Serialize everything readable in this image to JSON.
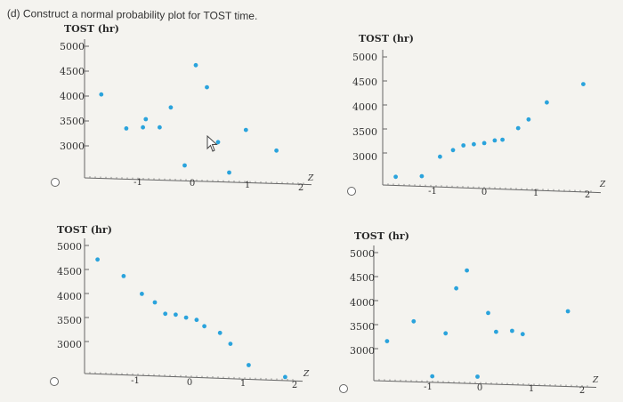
{
  "question": "(d) Construct a normal probability plot for TOST time.",
  "options": [
    {
      "id": "A",
      "ylabel": "TOST (hr)",
      "yticks": [
        "5000",
        "4500",
        "4000",
        "3500",
        "3000"
      ],
      "xticks": [
        "-1",
        "0",
        "1",
        "2"
      ],
      "zlabel": "Z"
    },
    {
      "id": "B",
      "ylabel": "TOST (hr)",
      "yticks": [
        "5000",
        "4500",
        "4000",
        "3500",
        "3000"
      ],
      "xticks": [
        "-1",
        "0",
        "1",
        "2"
      ],
      "zlabel": "Z"
    },
    {
      "id": "C",
      "ylabel": "TOST (hr)",
      "yticks": [
        "5000",
        "4500",
        "4000",
        "3500",
        "3000"
      ],
      "xticks": [
        "-1",
        "0",
        "1",
        "2"
      ],
      "zlabel": "Z"
    },
    {
      "id": "D",
      "ylabel": "TOST (hr)",
      "yticks": [
        "5000",
        "4500",
        "4000",
        "3500",
        "3000"
      ],
      "xticks": [
        "-1",
        "0",
        "1",
        "2"
      ],
      "zlabel": "Z"
    }
  ],
  "chart_data": [
    {
      "type": "scatter",
      "ylabel": "TOST (hr)",
      "xlabel": "Z",
      "xlim": [
        -1.8,
        2.2
      ],
      "ylim": [
        2700,
        5100
      ],
      "points": [
        [
          -1.5,
          4180
        ],
        [
          -1.05,
          3540
        ],
        [
          -0.75,
          3570
        ],
        [
          -0.7,
          3730
        ],
        [
          -0.45,
          3580
        ],
        [
          -0.25,
          3970
        ],
        [
          0.0,
          2860
        ],
        [
          0.2,
          4800
        ],
        [
          0.4,
          4380
        ],
        [
          0.6,
          3330
        ],
        [
          0.8,
          2750
        ],
        [
          1.1,
          3580
        ],
        [
          1.65,
          3200
        ]
      ],
      "color": "#2aa3dc"
    },
    {
      "type": "scatter",
      "ylabel": "TOST (hr)",
      "xlabel": "Z",
      "xlim": [
        -1.9,
        2.2
      ],
      "ylim": [
        2700,
        5100
      ],
      "points": [
        [
          -1.65,
          2730
        ],
        [
          -1.15,
          2760
        ],
        [
          -0.8,
          3160
        ],
        [
          -0.55,
          3300
        ],
        [
          -0.35,
          3400
        ],
        [
          -0.15,
          3430
        ],
        [
          0.05,
          3460
        ],
        [
          0.25,
          3520
        ],
        [
          0.4,
          3540
        ],
        [
          0.7,
          3780
        ],
        [
          0.9,
          3960
        ],
        [
          1.25,
          4310
        ],
        [
          1.95,
          4700
        ]
      ],
      "color": "#2aa3dc"
    },
    {
      "type": "scatter",
      "ylabel": "TOST (hr)",
      "xlabel": "Z",
      "xlim": [
        -1.9,
        2.2
      ],
      "ylim": [
        2700,
        5100
      ],
      "points": [
        [
          -1.65,
          4830
        ],
        [
          -1.15,
          4520
        ],
        [
          -0.8,
          4180
        ],
        [
          -0.55,
          4020
        ],
        [
          -0.35,
          3800
        ],
        [
          -0.15,
          3790
        ],
        [
          0.05,
          3740
        ],
        [
          0.25,
          3700
        ],
        [
          0.4,
          3580
        ],
        [
          0.7,
          3460
        ],
        [
          0.9,
          3250
        ],
        [
          1.25,
          2840
        ],
        [
          1.95,
          2630
        ]
      ],
      "color": "#2aa3dc"
    },
    {
      "type": "scatter",
      "ylabel": "TOST (hr)",
      "xlabel": "Z",
      "xlim": [
        -1.9,
        2.2
      ],
      "ylim": [
        2700,
        5100
      ],
      "points": [
        [
          -1.65,
          3350
        ],
        [
          -1.15,
          3760
        ],
        [
          -0.8,
          2680
        ],
        [
          -0.55,
          3540
        ],
        [
          -0.35,
          4440
        ],
        [
          -0.15,
          4800
        ],
        [
          0.05,
          2700
        ],
        [
          0.25,
          3970
        ],
        [
          0.4,
          3600
        ],
        [
          0.7,
          3630
        ],
        [
          0.9,
          3570
        ],
        [
          1.75,
          4050
        ]
      ],
      "color": "#2aa3dc"
    }
  ]
}
